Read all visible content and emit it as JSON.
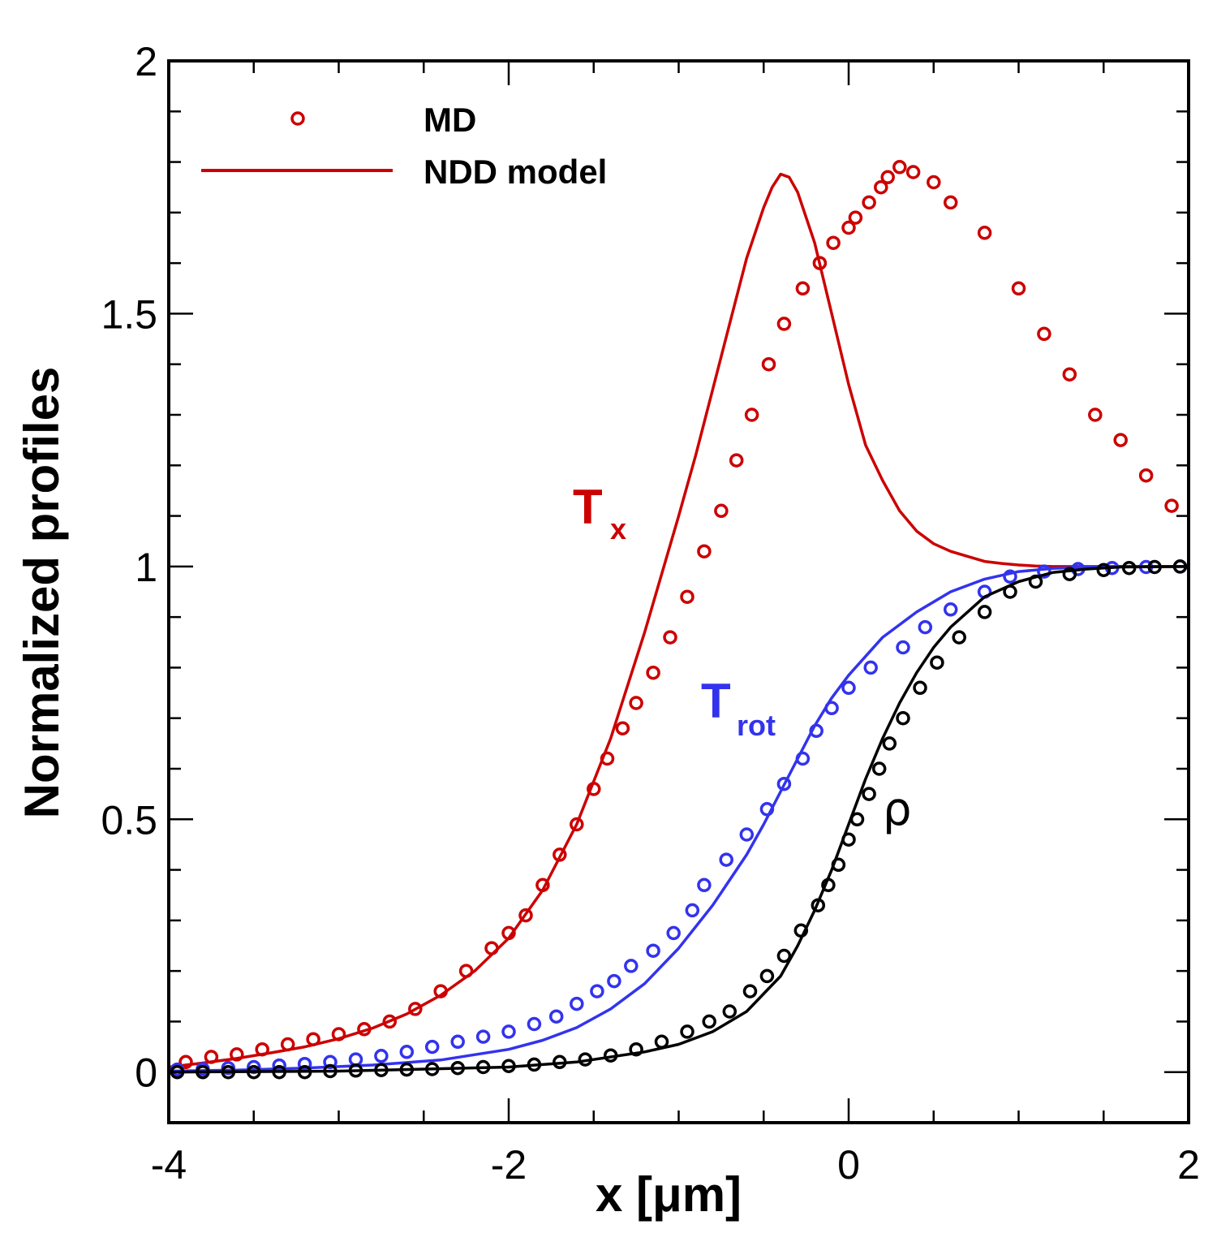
{
  "chart_data": {
    "type": "line",
    "title": "",
    "xlabel": "x [μm]",
    "ylabel": "Normalized profiles",
    "xlim": [
      -4,
      2
    ],
    "ylim": [
      -0.1,
      2
    ],
    "x_ticks": [
      -4,
      -2,
      0,
      2
    ],
    "x_tick_labels": [
      "-4",
      "-2",
      "0",
      "2"
    ],
    "y_ticks": [
      0,
      0.5,
      1,
      1.5,
      2
    ],
    "y_tick_labels": [
      "0",
      "0.5",
      "1",
      "1.5",
      "2"
    ],
    "grid": false,
    "legend": {
      "position": "top-left",
      "entries": [
        {
          "label": "MD",
          "style": "circle-markers",
          "color": "#cc0000"
        },
        {
          "label": "NDD model",
          "style": "solid-line",
          "color": "#cc0000"
        }
      ]
    },
    "annotations": [
      {
        "text": "T",
        "sub": "x",
        "color": "#cc0000",
        "x": -1.6,
        "y": 1.11
      },
      {
        "text": "T",
        "sub": "rot",
        "color": "#3333ee",
        "x": -0.85,
        "y": 0.72
      },
      {
        "text": "ρ",
        "sub": "",
        "color": "#000000",
        "x": 0.22,
        "y": 0.5
      }
    ],
    "series": [
      {
        "name": "Tx MD",
        "kind": "markers",
        "color": "#cc0000",
        "x": [
          -3.9,
          -3.75,
          -3.6,
          -3.45,
          -3.3,
          -3.15,
          -3.0,
          -2.85,
          -2.7,
          -2.55,
          -2.4,
          -2.25,
          -2.1,
          -2.0,
          -1.9,
          -1.8,
          -1.7,
          -1.6,
          -1.5,
          -1.42,
          -1.33,
          -1.25,
          -1.15,
          -1.05,
          -0.95,
          -0.85,
          -0.75,
          -0.66,
          -0.57,
          -0.47,
          -0.38,
          -0.27,
          -0.17,
          -0.09,
          0.0,
          0.04,
          0.12,
          0.19,
          0.23,
          0.3,
          0.38,
          0.5,
          0.6,
          0.8,
          1.0,
          1.15,
          1.3,
          1.45,
          1.6,
          1.75,
          1.9
        ],
        "y": [
          0.02,
          0.03,
          0.035,
          0.045,
          0.055,
          0.065,
          0.075,
          0.085,
          0.1,
          0.125,
          0.16,
          0.2,
          0.245,
          0.275,
          0.31,
          0.37,
          0.43,
          0.49,
          0.56,
          0.62,
          0.68,
          0.73,
          0.79,
          0.86,
          0.94,
          1.03,
          1.11,
          1.21,
          1.3,
          1.4,
          1.48,
          1.55,
          1.6,
          1.64,
          1.67,
          1.69,
          1.72,
          1.75,
          1.77,
          1.79,
          1.78,
          1.76,
          1.72,
          1.66,
          1.55,
          1.46,
          1.38,
          1.3,
          1.25,
          1.18,
          1.12
        ]
      },
      {
        "name": "Tx NDD",
        "kind": "line",
        "color": "#cc0000",
        "x": [
          -4.0,
          -3.8,
          -3.6,
          -3.4,
          -3.2,
          -3.0,
          -2.8,
          -2.6,
          -2.4,
          -2.2,
          -2.0,
          -1.8,
          -1.6,
          -1.4,
          -1.2,
          -1.0,
          -0.9,
          -0.8,
          -0.7,
          -0.6,
          -0.5,
          -0.45,
          -0.4,
          -0.35,
          -0.3,
          -0.2,
          -0.1,
          0.0,
          0.1,
          0.2,
          0.3,
          0.4,
          0.5,
          0.6,
          0.7,
          0.8,
          0.9,
          1.0,
          1.1,
          1.2,
          1.4,
          1.6,
          1.8,
          2.0
        ],
        "y": [
          0.01,
          0.018,
          0.027,
          0.038,
          0.05,
          0.066,
          0.087,
          0.115,
          0.152,
          0.2,
          0.265,
          0.36,
          0.49,
          0.66,
          0.87,
          1.1,
          1.22,
          1.35,
          1.48,
          1.61,
          1.71,
          1.75,
          1.776,
          1.77,
          1.74,
          1.64,
          1.5,
          1.36,
          1.24,
          1.17,
          1.11,
          1.07,
          1.045,
          1.03,
          1.02,
          1.01,
          1.006,
          1.003,
          1.001,
          1.0,
          1.0,
          1.0,
          1.0,
          1.0
        ]
      },
      {
        "name": "Trot MD",
        "kind": "markers",
        "color": "#3333ee",
        "x": [
          -3.95,
          -3.8,
          -3.65,
          -3.5,
          -3.35,
          -3.2,
          -3.05,
          -2.9,
          -2.75,
          -2.6,
          -2.45,
          -2.3,
          -2.15,
          -2.0,
          -1.85,
          -1.72,
          -1.6,
          -1.48,
          -1.38,
          -1.28,
          -1.15,
          -1.03,
          -0.92,
          -0.85,
          -0.72,
          -0.6,
          -0.48,
          -0.38,
          -0.27,
          -0.19,
          -0.1,
          0.0,
          0.13,
          0.32,
          0.45,
          0.6,
          0.8,
          0.95,
          1.15,
          1.35,
          1.55,
          1.75,
          1.95
        ],
        "y": [
          0.005,
          0.006,
          0.008,
          0.01,
          0.013,
          0.016,
          0.02,
          0.025,
          0.032,
          0.04,
          0.05,
          0.06,
          0.07,
          0.08,
          0.095,
          0.11,
          0.135,
          0.16,
          0.18,
          0.21,
          0.24,
          0.275,
          0.32,
          0.37,
          0.42,
          0.47,
          0.52,
          0.57,
          0.62,
          0.675,
          0.72,
          0.76,
          0.8,
          0.84,
          0.88,
          0.915,
          0.95,
          0.98,
          0.99,
          0.995,
          0.997,
          0.999,
          1.0
        ]
      },
      {
        "name": "Trot NDD",
        "kind": "line",
        "color": "#3333ee",
        "x": [
          -4.0,
          -3.6,
          -3.2,
          -2.8,
          -2.4,
          -2.0,
          -1.8,
          -1.6,
          -1.4,
          -1.2,
          -1.0,
          -0.8,
          -0.6,
          -0.5,
          -0.4,
          -0.3,
          -0.2,
          -0.1,
          0.0,
          0.2,
          0.4,
          0.6,
          0.8,
          1.0,
          1.2,
          1.4,
          1.6,
          2.0
        ],
        "y": [
          0.002,
          0.004,
          0.008,
          0.014,
          0.024,
          0.045,
          0.063,
          0.088,
          0.125,
          0.175,
          0.245,
          0.33,
          0.43,
          0.49,
          0.555,
          0.62,
          0.685,
          0.74,
          0.785,
          0.86,
          0.91,
          0.95,
          0.975,
          0.99,
          0.996,
          0.999,
          1.0,
          1.0
        ]
      },
      {
        "name": "rho MD",
        "kind": "markers",
        "color": "#000000",
        "x": [
          -3.95,
          -3.8,
          -3.65,
          -3.5,
          -3.35,
          -3.2,
          -3.05,
          -2.9,
          -2.75,
          -2.6,
          -2.45,
          -2.3,
          -2.15,
          -2.0,
          -1.85,
          -1.7,
          -1.55,
          -1.4,
          -1.25,
          -1.1,
          -0.95,
          -0.82,
          -0.7,
          -0.58,
          -0.48,
          -0.38,
          -0.28,
          -0.18,
          -0.12,
          -0.06,
          0.0,
          0.05,
          0.12,
          0.18,
          0.24,
          0.32,
          0.42,
          0.52,
          0.65,
          0.8,
          0.95,
          1.1,
          1.3,
          1.5,
          1.65,
          1.8,
          1.95
        ],
        "y": [
          0.0,
          0.0,
          0.0,
          0.0,
          0.0,
          0.0,
          0.002,
          0.003,
          0.004,
          0.005,
          0.006,
          0.008,
          0.01,
          0.012,
          0.015,
          0.02,
          0.025,
          0.033,
          0.045,
          0.06,
          0.08,
          0.1,
          0.12,
          0.16,
          0.19,
          0.23,
          0.28,
          0.33,
          0.37,
          0.41,
          0.46,
          0.5,
          0.55,
          0.6,
          0.65,
          0.7,
          0.76,
          0.81,
          0.86,
          0.91,
          0.95,
          0.97,
          0.985,
          0.993,
          0.997,
          0.999,
          1.0
        ]
      },
      {
        "name": "rho NDD",
        "kind": "line",
        "color": "#000000",
        "x": [
          -4.0,
          -3.0,
          -2.0,
          -1.6,
          -1.2,
          -1.0,
          -0.8,
          -0.6,
          -0.4,
          -0.3,
          -0.2,
          -0.1,
          0.0,
          0.1,
          0.2,
          0.3,
          0.4,
          0.5,
          0.6,
          0.8,
          1.0,
          1.2,
          1.4,
          1.6,
          2.0
        ],
        "y": [
          0.0,
          0.002,
          0.01,
          0.02,
          0.04,
          0.055,
          0.08,
          0.12,
          0.19,
          0.25,
          0.32,
          0.4,
          0.49,
          0.58,
          0.66,
          0.73,
          0.79,
          0.84,
          0.88,
          0.94,
          0.97,
          0.988,
          0.995,
          0.999,
          1.0
        ]
      }
    ]
  }
}
